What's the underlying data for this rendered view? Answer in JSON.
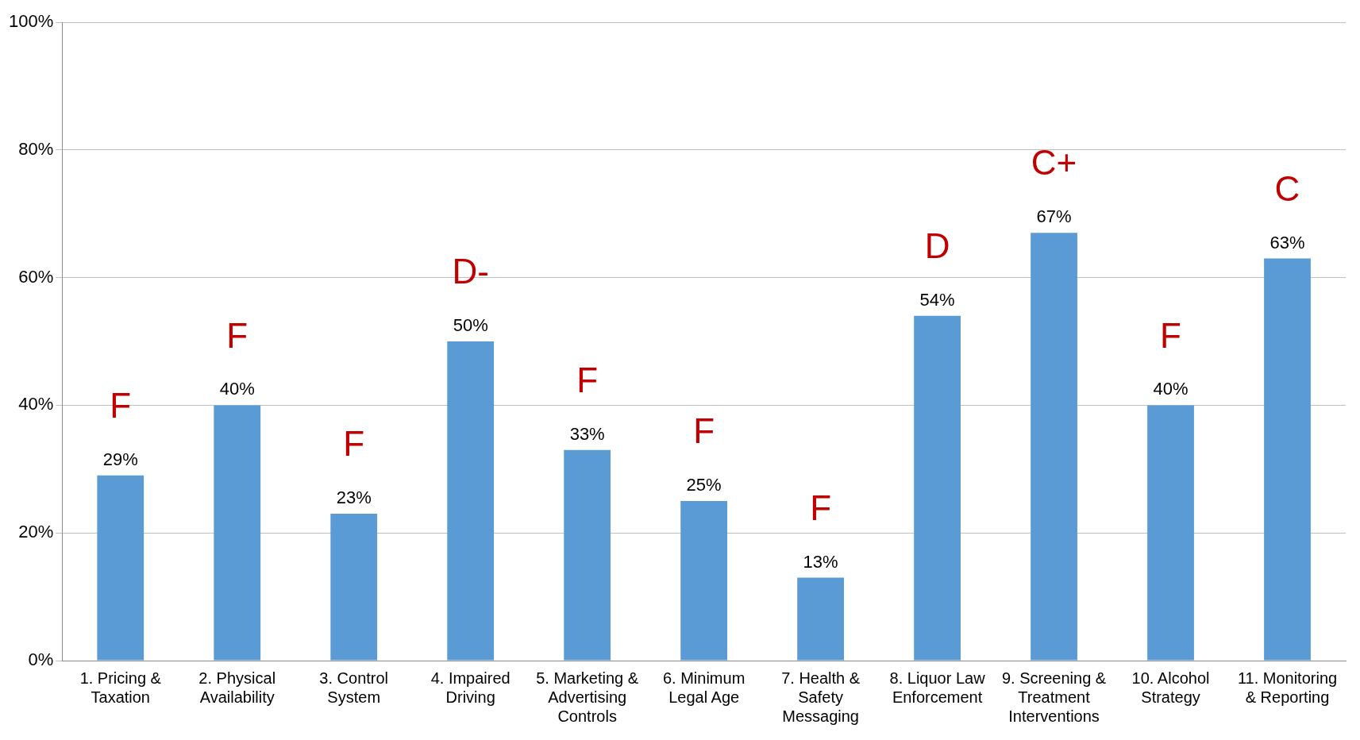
{
  "chart_data": {
    "type": "bar",
    "categories": [
      "1. Pricing & Taxation",
      "2. Physical Availability",
      "3. Control System",
      "4. Impaired Driving",
      "5. Marketing & Advertising Controls",
      "6. Minimum Legal Age",
      "7. Health & Safety Messaging",
      "8. Liquor Law Enforcement",
      "9. Screening & Treatment Interventions",
      "10. Alcohol Strategy",
      "11. Monitoring & Reporting"
    ],
    "values": [
      29,
      40,
      23,
      50,
      33,
      25,
      13,
      54,
      67,
      40,
      63
    ],
    "value_labels": [
      "29%",
      "40%",
      "23%",
      "50%",
      "33%",
      "25%",
      "13%",
      "54%",
      "67%",
      "40%",
      "63%"
    ],
    "color": "#5b9bd5",
    "ylim": [
      0,
      100
    ],
    "yticks": [
      {
        "value": 0,
        "label": "0%"
      },
      {
        "value": 20,
        "label": "20%"
      },
      {
        "value": 40,
        "label": "40%"
      },
      {
        "value": 60,
        "label": "60%"
      },
      {
        "value": 80,
        "label": "80%"
      },
      {
        "value": 100,
        "label": "100%"
      }
    ],
    "grid": "y",
    "legend": false,
    "annotations": [
      {
        "text": "F",
        "x": "1. Pricing & Taxation",
        "y": 29
      },
      {
        "text": "F",
        "x": "2. Physical Availability",
        "y": 40
      },
      {
        "text": "F",
        "x": "3. Control System",
        "y": 23
      },
      {
        "text": "D-",
        "x": "4. Impaired Driving",
        "y": 50
      },
      {
        "text": "F",
        "x": "5. Marketing & Advertising Controls",
        "y": 33
      },
      {
        "text": "F",
        "x": "6. Minimum Legal Age",
        "y": 25
      },
      {
        "text": "F",
        "x": "7. Health & Safety Messaging",
        "y": 13
      },
      {
        "text": "D",
        "x": "8. Liquor Law Enforcement",
        "y": 54
      },
      {
        "text": "C+",
        "x": "9. Screening & Treatment Interventions",
        "y": 67
      },
      {
        "text": "F",
        "x": "10. Alcohol Strategy",
        "y": 40
      },
      {
        "text": "C",
        "x": "11. Monitoring & Reporting",
        "y": 63
      }
    ]
  }
}
